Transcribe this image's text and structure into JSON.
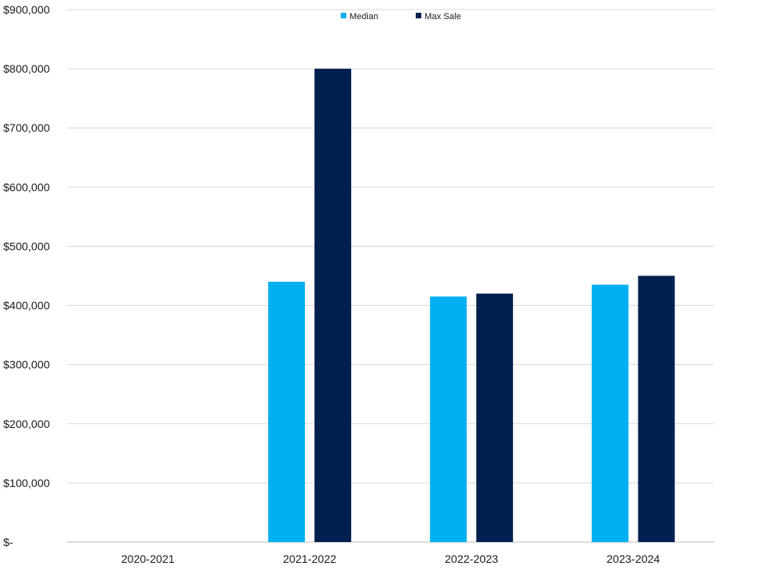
{
  "chart_data": {
    "type": "bar",
    "title": "",
    "xlabel": "",
    "ylabel": "",
    "categories": [
      "2020-2021",
      "2021-2022",
      "2022-2023",
      "2023-2024"
    ],
    "series": [
      {
        "name": "Median",
        "color": "#00B0F0",
        "values": [
          0,
          440000,
          415000,
          435000
        ]
      },
      {
        "name": "Max Sale",
        "color": "#002050",
        "values": [
          0,
          800000,
          420000,
          450000
        ]
      }
    ],
    "ylim": [
      0,
      900000
    ],
    "yticks": [
      {
        "value": 0,
        "label": "$-"
      },
      {
        "value": 100000,
        "label": "$100,000"
      },
      {
        "value": 200000,
        "label": "$200,000"
      },
      {
        "value": 300000,
        "label": "$300,000"
      },
      {
        "value": 400000,
        "label": "$400,000"
      },
      {
        "value": 500000,
        "label": "$500,000"
      },
      {
        "value": 600000,
        "label": "$600,000"
      },
      {
        "value": 700000,
        "label": "$700,000"
      },
      {
        "value": 800000,
        "label": "$800,000"
      },
      {
        "value": 900000,
        "label": "$900,000"
      }
    ],
    "grid": true,
    "legend_position": "top-center",
    "gridline_color": "#d9d9d9",
    "axis_color": "#bfbfbf"
  }
}
